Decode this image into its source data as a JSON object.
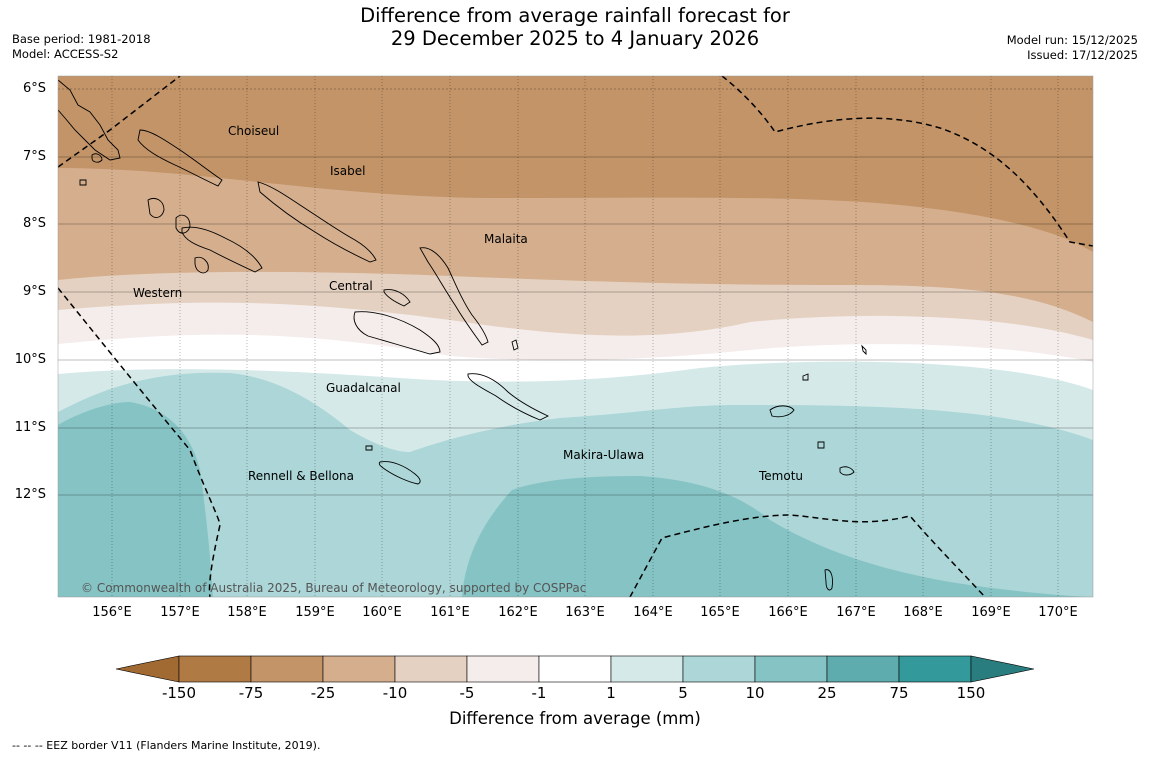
{
  "title": {
    "line1": "Difference from average rainfall forecast for",
    "line2": "29 December 2025 to 4 January 2026"
  },
  "meta_left": {
    "base_period": "Base period: 1981-2018",
    "model": "Model: ACCESS-S2"
  },
  "meta_right": {
    "model_run": "Model run: 15/12/2025",
    "issued": "Issued: 17/12/2025"
  },
  "latitude_labels": [
    "6°S",
    "7°S",
    "8°S",
    "9°S",
    "10°S",
    "11°S",
    "12°S"
  ],
  "longitude_labels": [
    "156°E",
    "157°E",
    "158°E",
    "159°E",
    "160°E",
    "161°E",
    "162°E",
    "163°E",
    "164°E",
    "165°E",
    "166°E",
    "167°E",
    "168°E",
    "169°E",
    "170°E"
  ],
  "places": {
    "choiseul": "Choiseul",
    "isabel": "Isabel",
    "malaita": "Malaita",
    "western": "Western",
    "central": "Central",
    "guadalcanal": "Guadalcanal",
    "makira_ulawa": "Makira-Ulawa",
    "temotu": "Temotu",
    "rennell_bellona": "Rennell & Bellona"
  },
  "copyright": "© Commonwealth of Australia 2025, Bureau of Meteorology, supported by COSPPac",
  "colorbar": {
    "title": "Difference from average (mm)",
    "ticks": [
      "-150",
      "-75",
      "-25",
      "-10",
      "-5",
      "-1",
      "1",
      "5",
      "10",
      "25",
      "75",
      "150"
    ],
    "colors": [
      "#a26a33",
      "#b07a44",
      "#c29468",
      "#d4ae8d",
      "#e4d1c1",
      "#f5edeb",
      "#ffffff",
      "#d6e9e9",
      "#acd6d7",
      "#86c3c4",
      "#5eacad",
      "#33999a",
      "#2a7d7e"
    ]
  },
  "footnote": "--  --  -- EEZ border V11 (Flanders Marine Institute, 2019)."
}
